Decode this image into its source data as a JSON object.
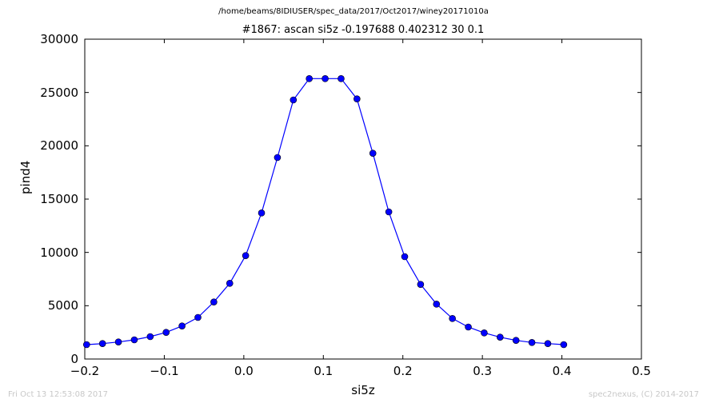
{
  "header": {
    "file_path": "/home/beams/8IDIUSER/spec_data/2017/Oct2017/winey20171010a"
  },
  "footer": {
    "timestamp": "Fri Oct 13 12:53:08 2017",
    "credit": "spec2nexus, (C) 2014-2017"
  },
  "chart_data": {
    "type": "line",
    "title": "#1867: ascan  si5z -0.197688 0.402312  30 0.1",
    "xlabel": "si5z",
    "ylabel": "pind4",
    "xlim": [
      -0.2,
      0.5
    ],
    "ylim": [
      0,
      30000
    ],
    "x_ticks": [
      -0.2,
      -0.1,
      0.0,
      0.1,
      0.2,
      0.3,
      0.4,
      0.5
    ],
    "x_tick_labels": [
      "−0.2",
      "−0.1",
      "0.0",
      "0.1",
      "0.2",
      "0.3",
      "0.4",
      "0.5"
    ],
    "y_ticks": [
      0,
      5000,
      10000,
      15000,
      20000,
      25000,
      30000
    ],
    "y_tick_labels": [
      "0",
      "5000",
      "10000",
      "15000",
      "20000",
      "25000",
      "30000"
    ],
    "grid": false,
    "color": "#0000ff",
    "marker": "circle",
    "series": [
      {
        "x": [
          -0.1977,
          -0.1777,
          -0.1577,
          -0.1377,
          -0.1177,
          -0.0977,
          -0.0777,
          -0.0577,
          -0.0377,
          -0.0177,
          0.0023,
          0.0223,
          0.0423,
          0.0623,
          0.0823,
          0.1023,
          0.1223,
          0.1423,
          0.1623,
          0.1823,
          0.2023,
          0.2223,
          0.2423,
          0.2623,
          0.2823,
          0.3023,
          0.3223,
          0.3423,
          0.3623,
          0.3823,
          0.4023
        ],
        "y": [
          1350,
          1450,
          1600,
          1800,
          2100,
          2500,
          3100,
          3900,
          5350,
          7100,
          9700,
          13700,
          18900,
          24300,
          26300,
          26300,
          26300,
          24400,
          19300,
          13800,
          9600,
          7000,
          5150,
          3800,
          3000,
          2450,
          2050,
          1750,
          1550,
          1450,
          1350
        ]
      }
    ]
  }
}
